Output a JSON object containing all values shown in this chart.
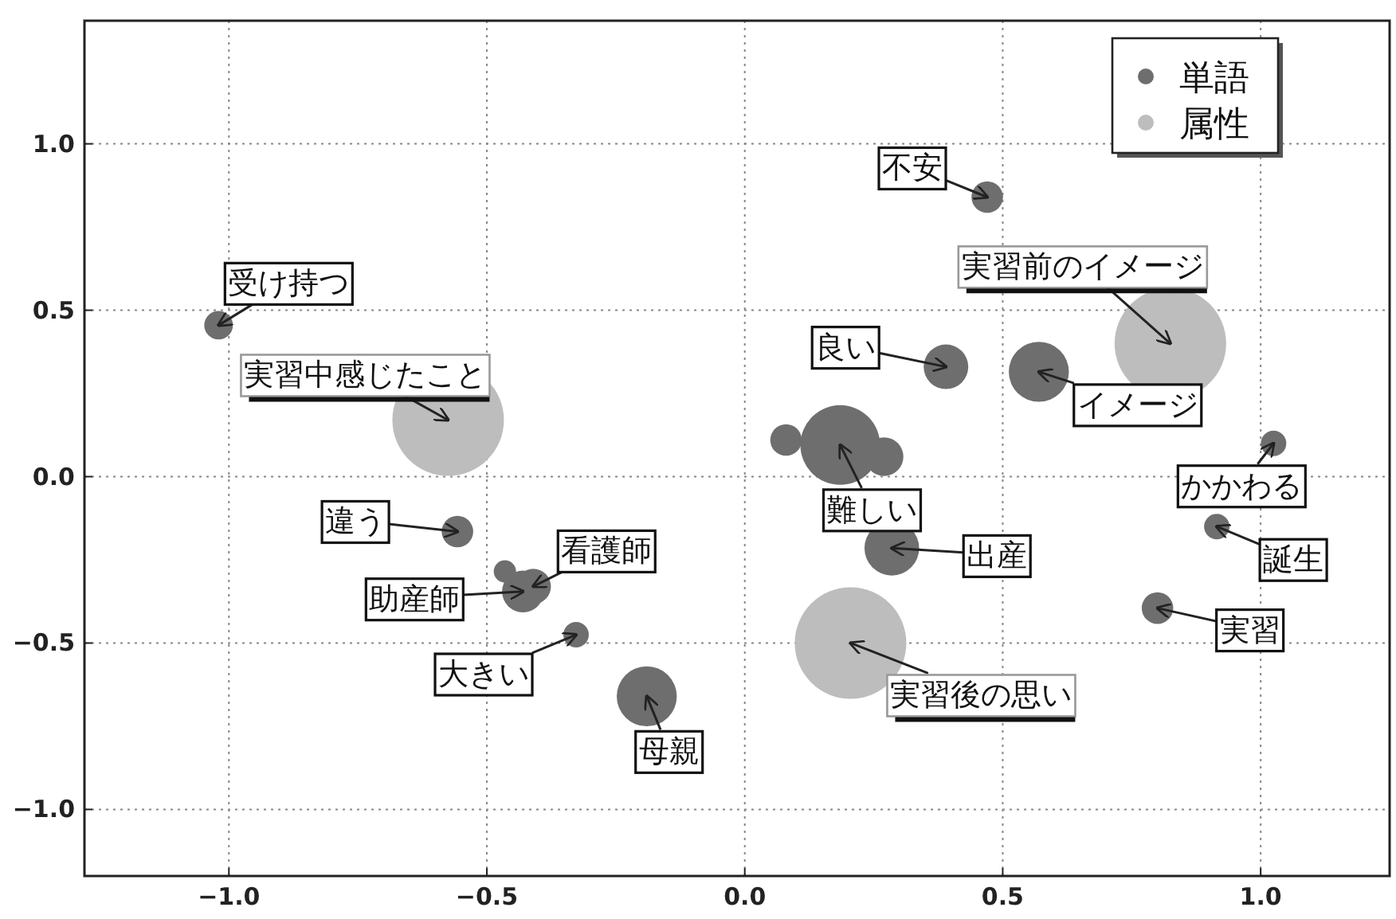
{
  "chart_data": {
    "type": "bubble",
    "xlim": [
      -1.28,
      1.25
    ],
    "ylim": [
      -1.2,
      1.37
    ],
    "xticks": [
      {
        "value": -1.0,
        "label": "−1.0"
      },
      {
        "value": -0.5,
        "label": "−0.5"
      },
      {
        "value": 0.0,
        "label": "0.0"
      },
      {
        "value": 0.5,
        "label": "0.5"
      },
      {
        "value": 1.0,
        "label": "1.0"
      }
    ],
    "yticks": [
      {
        "value": -1.0,
        "label": "−1.0"
      },
      {
        "value": -0.5,
        "label": "−0.5"
      },
      {
        "value": 0.0,
        "label": "0.0"
      },
      {
        "value": 0.5,
        "label": "0.5"
      },
      {
        "value": 1.0,
        "label": "1.0"
      }
    ],
    "grid": true,
    "legend": "top right",
    "series": [
      {
        "name": "単語",
        "color": "#6e6e6e",
        "x": [
          -1.02,
          0.47,
          0.39,
          0.57,
          1.025,
          0.08,
          0.185,
          0.27,
          -0.557,
          -0.465,
          -0.41,
          -0.43,
          -0.327,
          -0.19,
          0.285,
          0.915,
          0.8
        ],
        "values": [
          0.455,
          0.84,
          0.33,
          0.315,
          0.1,
          0.11,
          0.095,
          0.06,
          -0.165,
          -0.285,
          -0.33,
          -0.345,
          -0.475,
          -0.66,
          -0.215,
          -0.15,
          -0.395
        ],
        "sizes": [
          0.066,
          0.08,
          0.16,
          0.29,
          0.052,
          0.08,
          0.51,
          0.12,
          0.08,
          0.04,
          0.1,
          0.14,
          0.052,
          0.29,
          0.24,
          0.052,
          0.08
        ]
      },
      {
        "name": "属性",
        "color": "#bdbdbd",
        "x": [
          -0.575,
          0.825,
          0.205
        ],
        "values": [
          0.17,
          0.4,
          -0.5
        ],
        "sizes": [
          1,
          1,
          1
        ]
      }
    ],
    "annotations": [
      {
        "text": "受け持つ",
        "x": -1.02,
        "y": 0.455
      },
      {
        "text": "実習中感じたこと",
        "x": -0.575,
        "y": 0.17
      },
      {
        "text": "不安",
        "x": 0.47,
        "y": 0.84
      },
      {
        "text": "実習前のイメージ",
        "x": 0.825,
        "y": 0.4
      },
      {
        "text": "良い",
        "x": 0.39,
        "y": 0.33
      },
      {
        "text": "イメージ",
        "x": 0.57,
        "y": 0.315
      },
      {
        "text": "難しい",
        "x": 0.185,
        "y": 0.095
      },
      {
        "text": "かかわる",
        "x": 1.025,
        "y": 0.1
      },
      {
        "text": "違う",
        "x": -0.557,
        "y": -0.165
      },
      {
        "text": "看護師",
        "x": -0.41,
        "y": -0.33
      },
      {
        "text": "助産師",
        "x": -0.43,
        "y": -0.345
      },
      {
        "text": "大きい",
        "x": -0.327,
        "y": -0.475
      },
      {
        "text": "母親",
        "x": -0.19,
        "y": -0.66
      },
      {
        "text": "出産",
        "x": 0.285,
        "y": -0.215
      },
      {
        "text": "誕生",
        "x": 0.915,
        "y": -0.15
      },
      {
        "text": "実習",
        "x": 0.8,
        "y": -0.395
      },
      {
        "text": "実習後の思い",
        "x": 0.205,
        "y": -0.5
      }
    ]
  }
}
